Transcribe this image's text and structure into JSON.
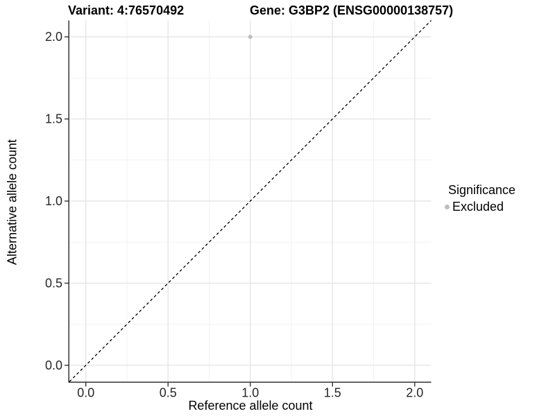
{
  "titles": {
    "variant": "Variant: 4:76570492",
    "gene": "Gene: G3BP2 (ENSG00000138757)"
  },
  "axes": {
    "x_label": "Reference allele count",
    "y_label": "Alternative allele count"
  },
  "legend": {
    "title": "Significance",
    "items": [
      {
        "label": "Excluded",
        "color": "#bebebe"
      }
    ]
  },
  "colors": {
    "background": "#ffffff",
    "axis_line": "#333333",
    "tick_text": "#262626",
    "grid_major": "#e5e5e5",
    "grid_minor": "#f2f2f2",
    "reference_line": "#000000",
    "point": "#bebebe"
  },
  "chart_data": {
    "type": "scatter",
    "title": "Variant: 4:76570492 | Gene: G3BP2 (ENSG00000138757)",
    "xlabel": "Reference allele count",
    "ylabel": "Alternative allele count",
    "xlim": [
      -0.1,
      2.1
    ],
    "ylim": [
      -0.1,
      2.1
    ],
    "x_major_ticks": [
      0,
      0.5,
      1,
      1.5,
      2
    ],
    "x_tick_labels": [
      "0.0",
      "0.5",
      "1.0",
      "1.5",
      "2.0"
    ],
    "y_major_ticks": [
      0,
      0.5,
      1,
      1.5,
      2
    ],
    "y_tick_labels": [
      "0.0",
      "0.5",
      "1.0",
      "1.5",
      "2.0"
    ],
    "x_minor_ticks": [
      0.25,
      0.75,
      1.25,
      1.75
    ],
    "y_minor_ticks": [
      0.25,
      0.75,
      1.25,
      1.75
    ],
    "grid": true,
    "legend_position": "right",
    "series": [
      {
        "name": "Excluded",
        "color": "#bebebe",
        "points": [
          {
            "x": 1.0,
            "y": 2.0
          }
        ]
      }
    ],
    "reference_line": {
      "slope": 1,
      "intercept": 0,
      "style": "dashed",
      "color": "#000000"
    }
  }
}
